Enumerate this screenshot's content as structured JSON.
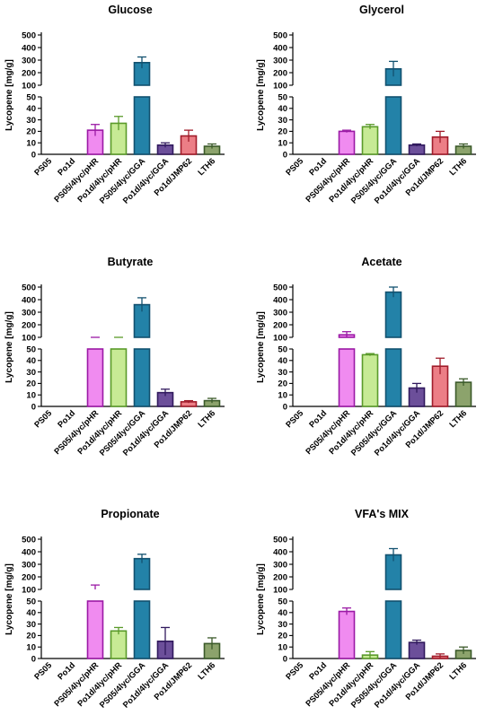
{
  "y_label": "Lycopene [mg/g]",
  "strain_colors": {
    "PS05/4lyc/pHR": {
      "stroke": "#9b1aa5",
      "fill": "#f08bf0"
    },
    "Po1d/4lyc/pHR": {
      "stroke": "#5a9a2a",
      "fill": "#c7ea95"
    },
    "PS05/4lyc/GGA": {
      "stroke": "#12516f",
      "fill": "#2382a8"
    },
    "Po1d/4lyc/GGA": {
      "stroke": "#311a5e",
      "fill": "#6c4f9a"
    },
    "Po1d/JMP62": {
      "stroke": "#a01c2a",
      "fill": "#ec7e86"
    },
    "LTH6": {
      "stroke": "#3b5a2a",
      "fill": "#8ca36c"
    }
  },
  "chart_data": [
    {
      "type": "bar",
      "title": "Glucose",
      "categories": [
        "PS05",
        "Po1d",
        "PS05/4lyc/pHR",
        "Po1d/4lyc/pHR",
        "PS05/4lyc/GGA",
        "Po1d/4lyc/GGA",
        "Po1d/JMP62",
        "LTH6"
      ],
      "values": [
        null,
        null,
        21,
        27,
        280,
        8,
        16,
        7
      ],
      "errors": [
        null,
        null,
        5,
        6,
        45,
        2,
        5,
        2
      ],
      "ylabel": "Lycopene [mg/g]",
      "y_upper_ticks": [
        100,
        200,
        300,
        400,
        500
      ],
      "y_lower_ticks": [
        0,
        10,
        20,
        30,
        40,
        50
      ],
      "ylim": [
        0,
        500
      ],
      "axis_break": [
        50,
        100
      ]
    },
    {
      "type": "bar",
      "title": "Glycerol",
      "categories": [
        "PS05",
        "Po1d",
        "PS05/4lyc/pHR",
        "Po1d/4lyc/pHR",
        "PS05/4lyc/GGA",
        "Po1d/4lyc/GGA",
        "Po1d/JMP62",
        "LTH6"
      ],
      "values": [
        null,
        null,
        20,
        24,
        230,
        8,
        15,
        7
      ],
      "errors": [
        null,
        null,
        1,
        2,
        60,
        1,
        5,
        2
      ],
      "ylabel": "Lycopene [mg/g]",
      "y_upper_ticks": [
        100,
        200,
        300,
        400,
        500
      ],
      "y_lower_ticks": [
        0,
        10,
        20,
        30,
        40,
        50
      ],
      "ylim": [
        0,
        500
      ],
      "axis_break": [
        50,
        100
      ]
    },
    {
      "type": "bar",
      "title": "Butyrate",
      "categories": [
        "PS05",
        "Po1d",
        "PS05/4lyc/pHR",
        "Po1d/4lyc/pHR",
        "PS05/4lyc/GGA",
        "Po1d/4lyc/GGA",
        "Po1d/JMP62",
        "LTH6"
      ],
      "values": [
        null,
        null,
        80,
        60,
        360,
        12,
        4,
        5
      ],
      "errors": [
        null,
        null,
        20,
        5,
        55,
        3,
        1,
        2
      ],
      "ylabel": "Lycopene [mg/g]",
      "y_upper_ticks": [
        100,
        200,
        300,
        400,
        500
      ],
      "y_lower_ticks": [
        0,
        10,
        20,
        30,
        40,
        50
      ],
      "ylim": [
        0,
        500
      ],
      "axis_break": [
        50,
        100
      ]
    },
    {
      "type": "bar",
      "title": "Acetate",
      "categories": [
        "PS05",
        "Po1d",
        "PS05/4lyc/pHR",
        "Po1d/4lyc/pHR",
        "PS05/4lyc/GGA",
        "Po1d/4lyc/GGA",
        "Po1d/JMP62",
        "LTH6"
      ],
      "values": [
        null,
        null,
        120,
        45,
        460,
        16,
        35,
        21
      ],
      "errors": [
        null,
        null,
        25,
        1,
        40,
        4,
        7,
        3
      ],
      "ylabel": "Lycopene [mg/g]",
      "y_upper_ticks": [
        100,
        200,
        300,
        400,
        500
      ],
      "y_lower_ticks": [
        0,
        10,
        20,
        30,
        40,
        50
      ],
      "ylim": [
        0,
        500
      ],
      "axis_break": [
        50,
        100
      ]
    },
    {
      "type": "bar",
      "title": "Propionate",
      "categories": [
        "PS05",
        "Po1d",
        "PS05/4lyc/pHR",
        "Po1d/4lyc/pHR",
        "PS05/4lyc/GGA",
        "Po1d/4lyc/GGA",
        "Po1d/JMP62",
        "LTH6"
      ],
      "values": [
        null,
        null,
        100,
        24,
        345,
        15,
        null,
        13
      ],
      "errors": [
        null,
        null,
        35,
        3,
        35,
        12,
        null,
        5
      ],
      "ylabel": "Lycopene [mg/g]",
      "y_upper_ticks": [
        100,
        200,
        300,
        400,
        500
      ],
      "y_lower_ticks": [
        0,
        10,
        20,
        30,
        40,
        50
      ],
      "ylim": [
        0,
        500
      ],
      "axis_break": [
        50,
        100
      ]
    },
    {
      "type": "bar",
      "title": "VFA's MIX",
      "categories": [
        "PS05",
        "Po1d",
        "PS05/4lyc/pHR",
        "Po1d/4lyc/pHR",
        "PS05/4lyc/GGA",
        "Po1d/4lyc/GGA",
        "Po1d/JMP62",
        "LTH6"
      ],
      "values": [
        null,
        null,
        41,
        3,
        375,
        14,
        2,
        7
      ],
      "errors": [
        null,
        null,
        3,
        3,
        50,
        2,
        2,
        3
      ],
      "ylabel": "Lycopene [mg/g]",
      "y_upper_ticks": [
        100,
        200,
        300,
        400,
        500
      ],
      "y_lower_ticks": [
        0,
        10,
        20,
        30,
        40,
        50
      ],
      "ylim": [
        0,
        500
      ],
      "axis_break": [
        50,
        100
      ]
    }
  ]
}
